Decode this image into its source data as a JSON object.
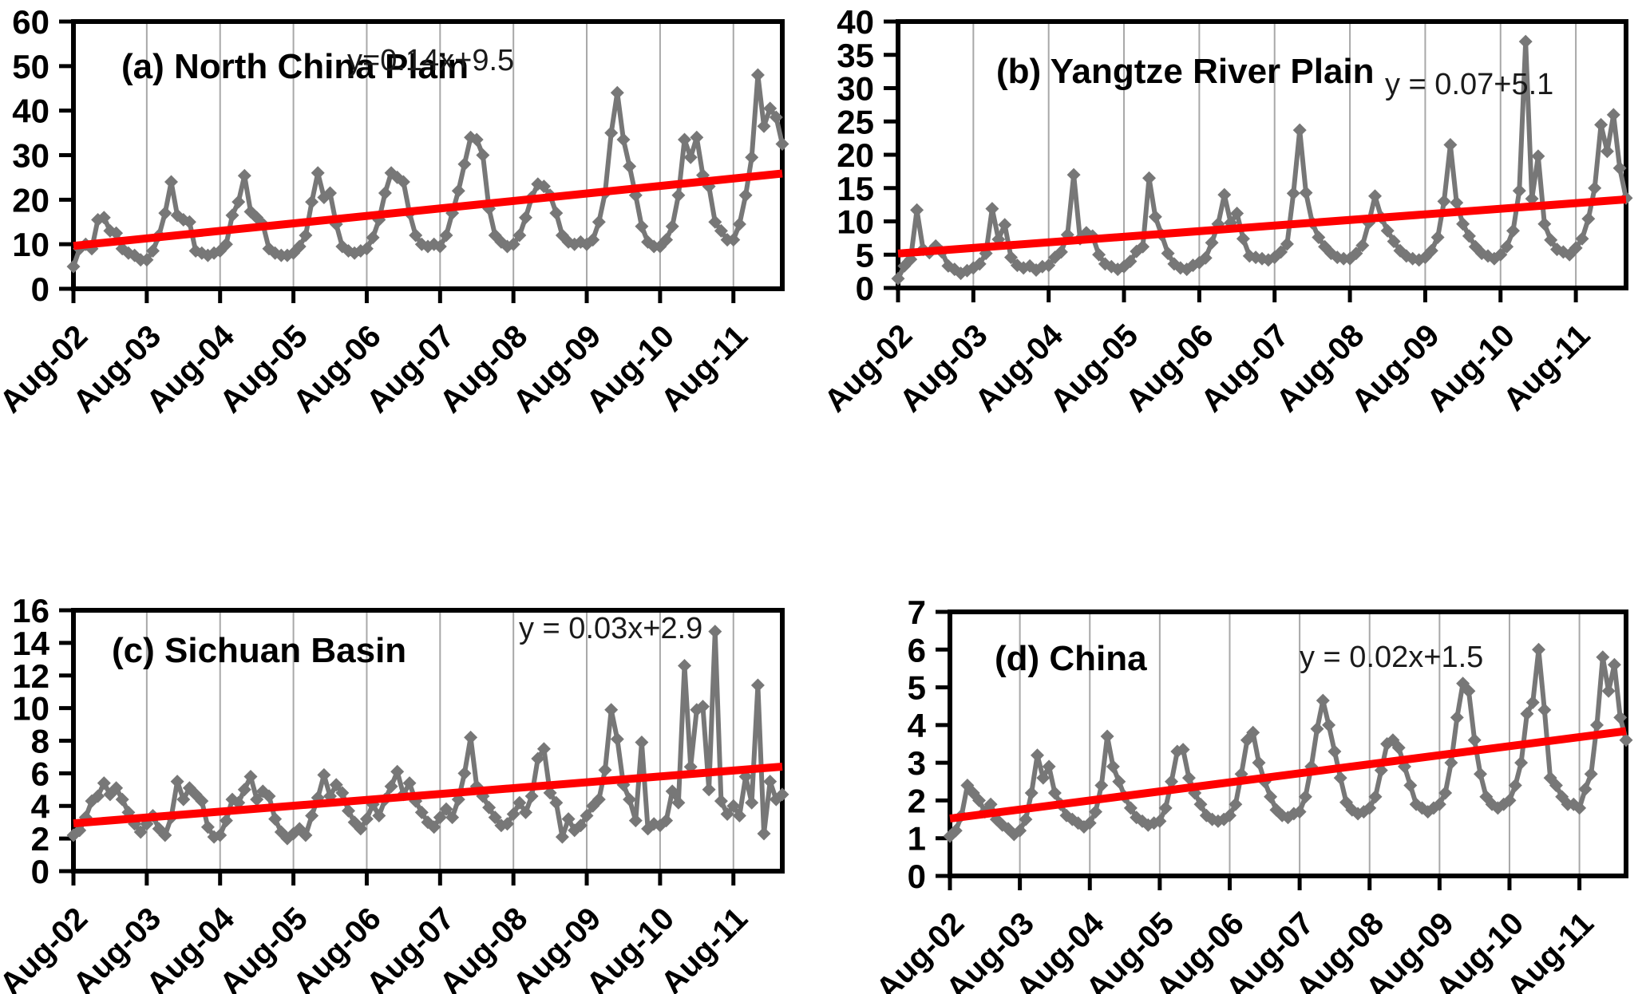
{
  "figure": {
    "background": "#ffffff",
    "description": "Four-panel monthly time series with red linear trend lines"
  },
  "chart_data": {
    "type": "line",
    "grid": "vertical-only",
    "legend": "none",
    "marker": "diamond",
    "points_per_series": 117,
    "x_start": "Aug-02",
    "x_end": "Apr-12",
    "x_labels": [
      "Aug-02",
      "Aug-03",
      "Aug-04",
      "Aug-05",
      "Aug-06",
      "Aug-07",
      "Aug-08",
      "Aug-09",
      "Aug-10",
      "Aug-11"
    ],
    "colors": {
      "series": "#777777",
      "trend": "#ff0000",
      "gridline": "#a8a8a8",
      "axis": "#000000",
      "text": "#000000"
    },
    "charts": [
      {
        "id": "a",
        "title": "(a) North China Plain",
        "equation": "y=0.14x+9.5",
        "ylim": [
          0,
          60
        ],
        "yticks": [
          0,
          10,
          20,
          30,
          40,
          50,
          60
        ],
        "trend": {
          "slope": 0.14,
          "intercept": 9.5
        },
        "values": [
          5,
          9,
          10,
          9,
          15.5,
          16,
          13,
          12.5,
          9,
          8,
          7.5,
          6.5,
          6.5,
          8.5,
          12,
          17,
          24,
          16.5,
          15.5,
          15,
          8.5,
          8,
          7.5,
          8,
          8.5,
          10,
          16.5,
          19.5,
          25.4,
          17.3,
          16,
          14.5,
          9,
          8,
          7.5,
          7.5,
          8,
          9.5,
          12,
          19.5,
          26,
          20.5,
          21.5,
          14.5,
          9.5,
          8.5,
          8,
          8.5,
          9,
          11.5,
          15.5,
          21.5,
          26,
          25,
          24,
          17,
          12,
          10,
          9.5,
          10,
          9.5,
          12,
          17,
          22,
          28,
          34,
          33.5,
          30,
          18,
          12,
          10.5,
          9.5,
          10,
          12,
          16,
          20.5,
          23.5,
          23,
          21,
          17,
          12,
          10.5,
          10,
          10.5,
          10,
          11,
          15,
          21.5,
          35,
          44,
          33.5,
          27.5,
          21,
          14,
          10.5,
          9.5,
          9.5,
          11,
          14,
          21,
          33.5,
          29.5,
          34,
          25.5,
          23,
          15,
          13,
          11,
          11,
          14.5,
          21,
          29.5,
          48,
          36.5,
          40.5,
          38.5,
          32.5
        ]
      },
      {
        "id": "b",
        "title": "(b) Yangtze River Plain",
        "equation": "y = 0.07+5.1",
        "ylim": [
          0,
          40
        ],
        "yticks": [
          0,
          5,
          10,
          15,
          20,
          25,
          30,
          35,
          40
        ],
        "trend": {
          "slope": 0.07,
          "intercept": 5.1
        },
        "values": [
          1.4,
          3.3,
          4.3,
          11.7,
          5.8,
          5.3,
          6.3,
          5.4,
          3.3,
          2.8,
          2.2,
          2.6,
          3.0,
          3.6,
          5.2,
          11.9,
          7.3,
          9.5,
          4.6,
          3.4,
          3.0,
          3.3,
          2.7,
          3.2,
          3.4,
          4.6,
          5.4,
          8.0,
          17.0,
          7.4,
          8.3,
          7.8,
          5.0,
          3.6,
          3.2,
          2.8,
          3.2,
          4.0,
          5.5,
          6.2,
          16.5,
          10.7,
          8.0,
          5.2,
          3.6,
          3.0,
          2.8,
          3.4,
          3.8,
          4.5,
          6.8,
          9.6,
          14.0,
          9.8,
          11.2,
          7.4,
          4.8,
          4.6,
          4.4,
          4.2,
          4.6,
          5.4,
          6.6,
          14.2,
          23.7,
          14.3,
          9.8,
          7.6,
          6.2,
          5.2,
          4.6,
          4.4,
          4.4,
          5.2,
          6.4,
          9.8,
          13.8,
          10.6,
          8.6,
          7.0,
          5.6,
          4.8,
          4.4,
          4.2,
          4.6,
          5.6,
          7.6,
          13.0,
          21.5,
          12.8,
          9.6,
          7.8,
          6.2,
          5.2,
          4.8,
          4.4,
          5.0,
          6.2,
          8.6,
          14.6,
          37.0,
          13.4,
          19.8,
          9.6,
          7.2,
          5.8,
          5.4,
          5.0,
          6.0,
          7.4,
          10.4,
          15.0,
          24.5,
          20.5,
          26.0,
          18.0,
          13.5
        ]
      },
      {
        "id": "c",
        "title": "(c) Sichuan Basin",
        "equation": "y = 0.03x+2.9",
        "ylim": [
          0,
          16
        ],
        "yticks": [
          0,
          2,
          4,
          6,
          8,
          10,
          12,
          14,
          16
        ],
        "trend": {
          "slope": 0.03,
          "intercept": 2.9
        },
        "values": [
          2.2,
          2.5,
          3.3,
          4.3,
          4.6,
          5.4,
          4.7,
          5.1,
          4.4,
          3.6,
          2.9,
          2.4,
          2.9,
          3.4,
          2.6,
          2.2,
          3.3,
          5.5,
          4.4,
          5.1,
          4.7,
          4.3,
          2.7,
          2.1,
          2.2,
          3.1,
          4.4,
          4.2,
          5.0,
          5.8,
          4.4,
          4.9,
          4.6,
          3.2,
          2.4,
          2.0,
          2.3,
          2.6,
          2.2,
          3.4,
          4.5,
          5.9,
          4.6,
          5.3,
          4.8,
          3.7,
          3.0,
          2.6,
          3.2,
          4.1,
          3.4,
          4.4,
          5.2,
          6.1,
          4.7,
          5.4,
          4.3,
          3.6,
          3.0,
          2.7,
          3.3,
          3.8,
          3.3,
          4.4,
          6.0,
          8.2,
          5.2,
          4.6,
          3.9,
          3.3,
          2.8,
          2.9,
          3.5,
          4.2,
          3.6,
          4.6,
          6.9,
          7.5,
          4.8,
          4.2,
          2.1,
          3.2,
          2.5,
          2.8,
          3.4,
          4.0,
          4.4,
          6.2,
          9.9,
          8.1,
          5.3,
          4.4,
          3.1,
          7.9,
          2.6,
          2.9,
          2.8,
          3.1,
          4.9,
          4.2,
          12.6,
          6.4,
          9.9,
          10.1,
          5.0,
          14.7,
          4.3,
          3.5,
          4.0,
          3.4,
          5.8,
          4.2,
          11.4,
          2.3,
          5.5,
          4.4,
          4.7
        ]
      },
      {
        "id": "d",
        "title": "(d) China",
        "equation": "y = 0.02x+1.5",
        "ylim": [
          0,
          7
        ],
        "yticks": [
          0,
          1,
          2,
          3,
          4,
          5,
          6,
          7
        ],
        "trend": {
          "slope": 0.02,
          "intercept": 1.5
        },
        "values": [
          1.05,
          1.2,
          1.6,
          2.4,
          2.2,
          2.0,
          1.7,
          1.9,
          1.5,
          1.35,
          1.25,
          1.1,
          1.2,
          1.5,
          2.2,
          3.2,
          2.6,
          2.9,
          2.2,
          1.9,
          1.6,
          1.5,
          1.4,
          1.3,
          1.4,
          1.7,
          2.4,
          3.7,
          2.9,
          2.5,
          2.1,
          1.8,
          1.55,
          1.45,
          1.35,
          1.4,
          1.45,
          1.8,
          2.5,
          3.3,
          3.35,
          2.6,
          2.2,
          1.9,
          1.6,
          1.5,
          1.45,
          1.5,
          1.6,
          1.9,
          2.7,
          3.6,
          3.8,
          3.0,
          2.5,
          2.1,
          1.75,
          1.6,
          1.55,
          1.65,
          1.7,
          2.1,
          2.9,
          3.9,
          4.65,
          4.0,
          3.3,
          2.6,
          1.95,
          1.75,
          1.65,
          1.7,
          1.8,
          2.1,
          2.8,
          3.5,
          3.6,
          3.4,
          2.9,
          2.4,
          1.9,
          1.8,
          1.7,
          1.8,
          1.9,
          2.2,
          3.0,
          4.2,
          5.1,
          4.9,
          3.6,
          2.7,
          2.1,
          1.9,
          1.8,
          1.9,
          2.0,
          2.4,
          3.0,
          4.3,
          4.6,
          6.0,
          4.4,
          2.6,
          2.4,
          2.1,
          1.9,
          1.9,
          1.8,
          2.3,
          2.7,
          4.0,
          5.8,
          4.9,
          5.6,
          4.2,
          3.6
        ]
      }
    ]
  }
}
